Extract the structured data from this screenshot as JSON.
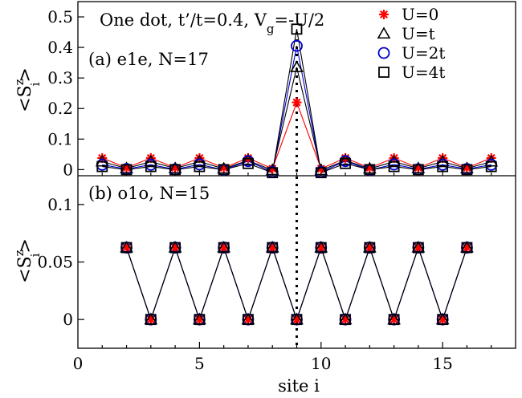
{
  "chart_data": [
    {
      "type": "line",
      "panel": "top",
      "panel_label": "(a) e1e, N=17",
      "title": "One dot, t’/t=0.4, V",
      "title_subscript": "g",
      "title_tail": "=-U/2",
      "ylabel": {
        "base": "<S",
        "sup": "z",
        "sub": "i",
        "close": ">"
      },
      "xlim": [
        0,
        18
      ],
      "ylim": [
        -0.02,
        0.55
      ],
      "yticks": [
        0,
        0.1,
        0.2,
        0.3,
        0.4,
        0.5
      ],
      "ytick_labels": [
        "0",
        "0.1",
        "0.2",
        "0.3",
        "0.4",
        "0.5"
      ],
      "legend_position": "top-right",
      "x": [
        1,
        2,
        3,
        4,
        5,
        6,
        7,
        8,
        9,
        10,
        11,
        12,
        13,
        14,
        15,
        16,
        17
      ],
      "series": [
        {
          "name": "U=0",
          "color": "#ff0000",
          "marker": "star",
          "values": [
            0.038,
            0.006,
            0.038,
            0.006,
            0.038,
            0.006,
            0.038,
            0.003,
            0.22,
            0.003,
            0.038,
            0.006,
            0.038,
            0.006,
            0.038,
            0.006,
            0.038
          ]
        },
        {
          "name": "U=t",
          "color": "#000000",
          "marker": "triangle",
          "values": [
            0.026,
            0.004,
            0.026,
            0.004,
            0.026,
            0.003,
            0.03,
            -0.002,
            0.335,
            -0.002,
            0.03,
            0.003,
            0.026,
            0.004,
            0.026,
            0.004,
            0.026
          ]
        },
        {
          "name": "U=2t",
          "color": "#0000cc",
          "marker": "circle",
          "values": [
            0.016,
            0.002,
            0.016,
            0.001,
            0.017,
            -0.001,
            0.028,
            -0.008,
            0.405,
            -0.008,
            0.028,
            -0.001,
            0.017,
            0.001,
            0.016,
            0.002,
            0.016
          ]
        },
        {
          "name": "U=4t",
          "color": "#000000",
          "marker": "square",
          "values": [
            0.01,
            0.0,
            0.01,
            0.0,
            0.01,
            0.0,
            0.02,
            -0.01,
            0.46,
            -0.01,
            0.02,
            0.0,
            0.01,
            0.0,
            0.01,
            0.0,
            0.01
          ]
        }
      ]
    },
    {
      "type": "line",
      "panel": "bottom",
      "panel_label": "(b) o1o, N=15",
      "xlabel": "site i",
      "ylabel": {
        "base": "<S",
        "sup": "z",
        "sub": "i",
        "close": ">"
      },
      "xlim": [
        0,
        18
      ],
      "xticks": [
        0,
        5,
        10,
        15
      ],
      "xtick_labels": [
        "0",
        "5",
        "10",
        "15"
      ],
      "ylim": [
        -0.025,
        0.125
      ],
      "yticks": [
        0,
        0.05,
        0.1
      ],
      "ytick_labels": [
        "0",
        "0.05",
        "0.1"
      ],
      "x": [
        2,
        3,
        4,
        5,
        6,
        7,
        8,
        9,
        10,
        11,
        12,
        13,
        14,
        15,
        16
      ],
      "series": [
        {
          "name": "U=0",
          "color": "#ff0000",
          "marker": "star",
          "values": [
            0.0625,
            0,
            0.0625,
            0,
            0.0625,
            0,
            0.0625,
            0,
            0.0625,
            0,
            0.0625,
            0,
            0.0625,
            0,
            0.0625
          ]
        },
        {
          "name": "U=t",
          "color": "#000000",
          "marker": "triangle",
          "values": [
            0.0625,
            0,
            0.0625,
            0,
            0.0625,
            0,
            0.0625,
            0,
            0.0625,
            0,
            0.0625,
            0,
            0.0625,
            0,
            0.0625
          ]
        },
        {
          "name": "U=2t",
          "color": "#0000cc",
          "marker": "circle",
          "values": [
            0.0625,
            0,
            0.0625,
            0,
            0.0625,
            0,
            0.0625,
            0,
            0.0625,
            0,
            0.0625,
            0,
            0.0625,
            0,
            0.0625
          ]
        },
        {
          "name": "U=4t",
          "color": "#000000",
          "marker": "square",
          "values": [
            0.0625,
            0,
            0.0625,
            0,
            0.0625,
            0,
            0.0625,
            0,
            0.0625,
            0,
            0.0625,
            0,
            0.0625,
            0,
            0.0625
          ]
        }
      ]
    }
  ],
  "annotations": {
    "dotted_line_x": 9
  }
}
